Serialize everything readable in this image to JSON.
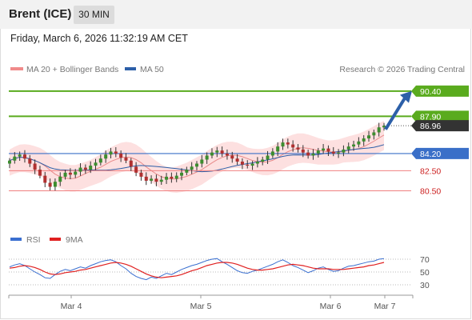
{
  "header": {
    "instrument": "Brent (ICE)",
    "interval": "30 MIN",
    "datetime": "Friday, March 6, 2026 11:32:19 AM CET"
  },
  "legend": {
    "bollinger": "MA 20 + Bollinger Bands",
    "ma50": "MA 50",
    "credit": "Research © 2026 Trading Central",
    "rsi": "RSI",
    "rsi_ma": "9MA"
  },
  "colors": {
    "bull": "#3c8d2f",
    "bear": "#b03030",
    "resistance": "#5aab1e",
    "pivot": "#3a6fc8",
    "support": "#f08080",
    "current": "#333333",
    "arrow": "#2c5fa8",
    "bands": "#fde0e0",
    "ma20": "#e88a8a",
    "ma50": "#2c5fa8",
    "rsi": "#3a6fd0",
    "rsi_ma": "#e02020"
  },
  "levels": [
    {
      "label": "90.40",
      "kind": "resistance"
    },
    {
      "label": "87.90",
      "kind": "resistance"
    },
    {
      "label": "86.96",
      "kind": "current"
    },
    {
      "label": "84.20",
      "kind": "pivot"
    },
    {
      "label": "82.50",
      "kind": "support"
    },
    {
      "label": "80.50",
      "kind": "support"
    }
  ],
  "rsi_axis": [
    "70",
    "50",
    "30"
  ],
  "time_axis": [
    "Mar 4",
    "Mar 5",
    "Mar 6",
    "Mar 7"
  ],
  "chart_data": {
    "type": "candlestick",
    "title": "Brent (ICE)",
    "interval": "30 MIN",
    "price_range": [
      78.0,
      91.5
    ],
    "overlays": [
      "MA 20 + Bollinger Bands",
      "MA 50"
    ],
    "key_levels": [
      90.4,
      87.9,
      84.2,
      82.5,
      80.5
    ],
    "last_price": 86.96,
    "close_series": [
      83.5,
      83.9,
      84.1,
      83.7,
      83.2,
      82.6,
      82.0,
      81.3,
      80.9,
      81.4,
      81.9,
      82.3,
      82.1,
      82.4,
      82.8,
      82.6,
      83.0,
      83.3,
      83.7,
      84.1,
      84.4,
      84.2,
      83.8,
      83.5,
      82.9,
      82.3,
      81.9,
      81.5,
      81.7,
      81.4,
      81.6,
      81.9,
      81.7,
      82.0,
      82.3,
      82.6,
      82.9,
      83.2,
      83.6,
      84.0,
      84.3,
      84.5,
      84.2,
      84.0,
      83.7,
      83.4,
      83.1,
      83.0,
      83.2,
      83.4,
      83.6,
      84.0,
      84.4,
      84.9,
      85.3,
      85.1,
      84.8,
      84.6,
      84.3,
      84.0,
      84.2,
      84.5,
      84.7,
      84.4,
      84.2,
      84.3,
      84.6,
      84.9,
      85.1,
      85.4,
      85.7,
      86.0,
      86.3,
      86.8,
      86.96
    ]
  },
  "rsi_data": {
    "rsi": [
      58,
      61,
      63,
      60,
      55,
      50,
      46,
      41,
      40,
      46,
      51,
      54,
      52,
      55,
      58,
      56,
      60,
      63,
      66,
      68,
      69,
      66,
      60,
      55,
      48,
      43,
      40,
      38,
      42,
      40,
      44,
      48,
      46,
      50,
      54,
      57,
      60,
      62,
      65,
      68,
      70,
      71,
      66,
      62,
      57,
      52,
      49,
      48,
      51,
      53,
      56,
      59,
      62,
      66,
      69,
      65,
      60,
      57,
      53,
      49,
      52,
      56,
      58,
      54,
      51,
      52,
      56,
      59,
      60,
      62,
      64,
      66,
      67,
      70,
      71
    ],
    "ma": [
      56,
      57,
      59,
      60,
      59,
      57,
      54,
      50,
      47,
      46,
      47,
      49,
      50,
      51,
      53,
      54,
      56,
      58,
      60,
      62,
      64,
      65,
      64,
      62,
      59,
      55,
      51,
      47,
      44,
      42,
      41,
      42,
      43,
      44,
      46,
      49,
      52,
      54,
      57,
      60,
      62,
      64,
      65,
      65,
      64,
      62,
      59,
      56,
      54,
      53,
      53,
      54,
      55,
      57,
      59,
      61,
      62,
      61,
      60,
      58,
      56,
      55,
      55,
      55,
      54,
      54,
      54,
      55,
      56,
      57,
      58,
      60,
      61,
      63,
      65
    ]
  }
}
